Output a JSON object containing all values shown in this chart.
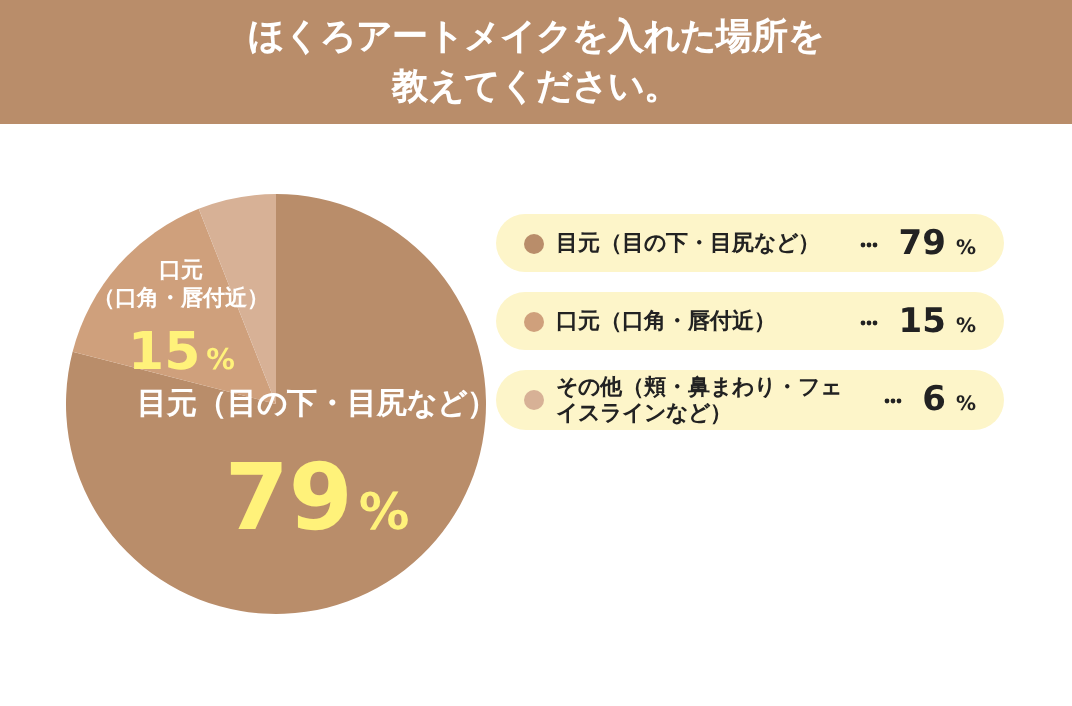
{
  "chart_data": {
    "type": "pie",
    "title": "ほくろアートメイクを入れた場所を教えてください。",
    "categories": [
      "目元（目の下・目尻など）",
      "口元（口角・唇付近）",
      "その他（頬・鼻まわり・フェイスラインなど）"
    ],
    "values": [
      79,
      15,
      6
    ],
    "colors": [
      "#b98d6a",
      "#cfa07c",
      "#d7b196"
    ],
    "value_labels": [
      "79%",
      "15%",
      "6%"
    ],
    "legend": "right"
  }
}
